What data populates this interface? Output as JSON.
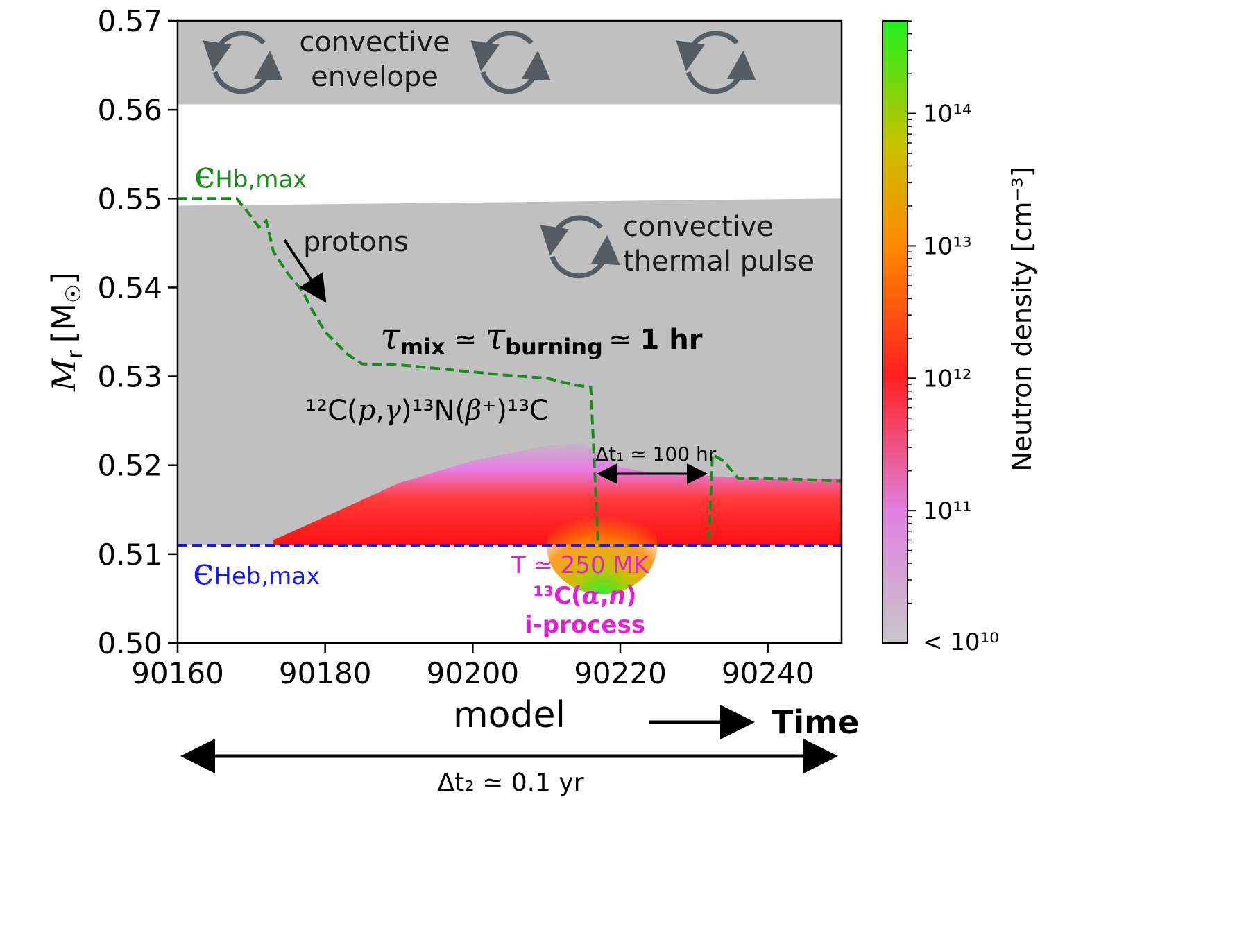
{
  "chart_data": {
    "type": "heatmap",
    "xlabel": "model",
    "ylabel_main": "M",
    "ylabel_sub": "r",
    "ylabel_unit": "[M",
    "ylabel_unit_sym": "☉",
    "ylabel_close": "]",
    "xlim": [
      90160,
      90250
    ],
    "ylim": [
      0.5,
      0.57
    ],
    "xticks": [
      90160,
      90180,
      90200,
      90220,
      90240
    ],
    "xtick_labels": [
      "90160",
      "90180",
      "90200",
      "90220",
      "90240"
    ],
    "yticks": [
      0.5,
      0.51,
      0.52,
      0.53,
      0.54,
      0.55,
      0.56,
      0.57
    ],
    "ytick_labels": [
      "0.50",
      "0.51",
      "0.52",
      "0.53",
      "0.54",
      "0.55",
      "0.56",
      "0.57"
    ],
    "colorbar": {
      "label": "Neutron density [cm⁻³]",
      "scale": "log",
      "range_log10": [
        10,
        14.7
      ],
      "ticks_log10": [
        11,
        12,
        13,
        14
      ],
      "tick_labels": [
        "10¹¹",
        "10¹²",
        "10¹³",
        "10¹⁴"
      ],
      "min_label": "< 10¹⁰",
      "colors": [
        "#c8c8c8",
        "#e080e0",
        "#ff2020",
        "#ff8a00",
        "#20e020"
      ]
    },
    "regions": {
      "convective_envelope": {
        "y_bottom": 0.5606,
        "y_top": 0.57,
        "color": "#c0c0c0"
      },
      "convective_pulse": {
        "y_bottom": 0.511,
        "y_top_left": 0.5492,
        "y_top_right": 0.55,
        "color": "#c0c0c0"
      }
    },
    "series": [
      {
        "name": "ε_Hb,max",
        "color": "#1a8a1a",
        "style": "dashed",
        "x": [
          90160,
          90168,
          90169.5,
          90171,
          90172,
          90173,
          90175,
          90177,
          90178,
          90180,
          90183,
          90185,
          90190,
          90200,
          90205,
          90210,
          90214,
          90216,
          90217,
          90219,
          90221,
          90223,
          90231,
          90232,
          90232.5,
          90234,
          90235,
          90236,
          90240,
          90245,
          90250
        ],
        "y": [
          0.55,
          0.55,
          0.5485,
          0.5468,
          0.5475,
          0.544,
          0.5415,
          0.5395,
          0.5378,
          0.535,
          0.5325,
          0.5314,
          0.5313,
          0.5305,
          0.5301,
          0.5298,
          0.529,
          0.5288,
          0.511,
          0.511,
          0.511,
          0.511,
          0.511,
          0.511,
          0.5212,
          0.5205,
          0.5195,
          0.5185,
          0.5185,
          0.5184,
          0.5182
        ]
      },
      {
        "name": "ε_Heb,max",
        "color": "#1a1aee",
        "style": "dashed",
        "x": [
          90160,
          90250
        ],
        "y": [
          0.511,
          0.511
        ]
      }
    ],
    "neutron_density_zone": {
      "y_bottom": 0.511,
      "top_edge": {
        "x": [
          90173,
          90180,
          90190,
          90200,
          90210,
          90215,
          90220,
          90225,
          90232,
          90240,
          90250
        ],
        "y": [
          0.5116,
          0.5142,
          0.518,
          0.5205,
          0.5222,
          0.5225,
          0.5198,
          0.519,
          0.5188,
          0.5185,
          0.5185
        ]
      },
      "peak_log10": 14.5,
      "peak_model": 90217.5
    }
  },
  "annotations": {
    "envelope_label_line1": "convective",
    "envelope_label_line2": "envelope",
    "pulse_label_line1": "convective",
    "pulse_label_line2": "thermal pulse",
    "protons": "protons",
    "eps_hb_symbol": "ϵ",
    "eps_hb_sub": "Hb,max",
    "eps_heb_symbol": "ϵ",
    "eps_heb_sub": "Heb,max",
    "tau_mix_sym": "τ",
    "tau_mix_sub": "mix",
    "approx": "≃",
    "tau_burn_sym": "τ",
    "tau_burn_sub": "burning",
    "tau_result": "1 hr",
    "reaction_prefix": "¹²C(",
    "reaction_p": "p",
    "reaction_comma": ",",
    "reaction_gamma": "γ",
    "reaction_mid": ")¹³N(",
    "reaction_beta": "β⁺",
    "reaction_suffix": ")¹³C",
    "dt1": "Δt₁ ≃ 100 hr",
    "temperature": "T ≃ 250 MK",
    "alpha_n_prefix": "¹³C(",
    "alpha_n_alpha": "α",
    "alpha_n_comma": ",",
    "alpha_n_n": "n",
    "alpha_n_suffix": ")",
    "iprocess": "i-process",
    "time_label": "Time",
    "dt2": "Δt₂ ≃ 0.1 yr",
    "color_text_magenta": "#e020d0"
  }
}
